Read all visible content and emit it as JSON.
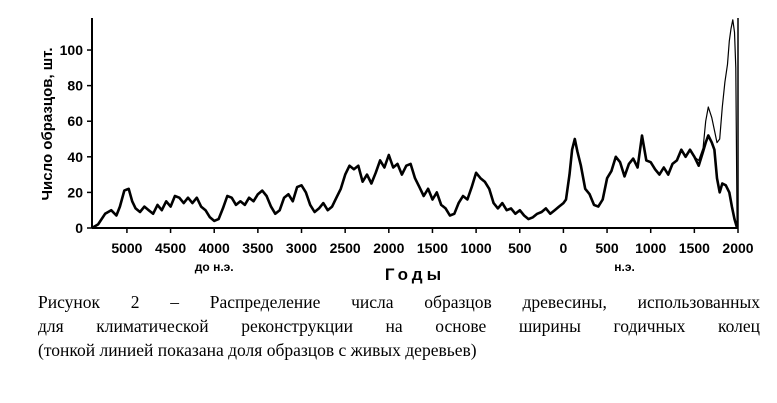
{
  "chart_data": {
    "type": "line",
    "xlabel": "Годы",
    "ylabel": "Число образцов, шт.",
    "x_axis_reversed_before_era": true,
    "x_ticks": [
      {
        "label": "5000",
        "year": -5000
      },
      {
        "label": "4500",
        "year": -4500
      },
      {
        "label": "4000",
        "year": -4000
      },
      {
        "label": "3500",
        "year": -3500
      },
      {
        "label": "3000",
        "year": -3000
      },
      {
        "label": "2500",
        "year": -2500
      },
      {
        "label": "2000",
        "year": -2000
      },
      {
        "label": "1500",
        "year": -1500
      },
      {
        "label": "1000",
        "year": -1000
      },
      {
        "label": "500",
        "year": -500
      },
      {
        "label": "0",
        "year": 0
      },
      {
        "label": "500",
        "year": 500
      },
      {
        "label": "1000",
        "year": 1000
      },
      {
        "label": "1500",
        "year": 1500
      },
      {
        "label": "2000",
        "year": 2000
      }
    ],
    "era_labels": [
      {
        "text": "до н.э.",
        "year": -4000
      },
      {
        "text": "н.э.",
        "year": 700
      }
    ],
    "y_ticks": [
      0,
      20,
      40,
      60,
      80,
      100
    ],
    "xlim": [
      -5400,
      2000
    ],
    "ylim": [
      0,
      118
    ],
    "grid": false,
    "series": [
      {
        "style": "thick",
        "points": [
          [
            -5400,
            0
          ],
          [
            -5330,
            2
          ],
          [
            -5250,
            8
          ],
          [
            -5180,
            10
          ],
          [
            -5120,
            7
          ],
          [
            -5080,
            12
          ],
          [
            -5030,
            21
          ],
          [
            -4980,
            22
          ],
          [
            -4940,
            15
          ],
          [
            -4900,
            11
          ],
          [
            -4850,
            9
          ],
          [
            -4800,
            12
          ],
          [
            -4750,
            10
          ],
          [
            -4700,
            8
          ],
          [
            -4650,
            13
          ],
          [
            -4600,
            10
          ],
          [
            -4550,
            15
          ],
          [
            -4500,
            12
          ],
          [
            -4450,
            18
          ],
          [
            -4400,
            17
          ],
          [
            -4350,
            14
          ],
          [
            -4300,
            17
          ],
          [
            -4250,
            14
          ],
          [
            -4200,
            17
          ],
          [
            -4150,
            12
          ],
          [
            -4100,
            10
          ],
          [
            -4050,
            6
          ],
          [
            -4000,
            4
          ],
          [
            -3950,
            5
          ],
          [
            -3900,
            11
          ],
          [
            -3850,
            18
          ],
          [
            -3800,
            17
          ],
          [
            -3750,
            13
          ],
          [
            -3700,
            15
          ],
          [
            -3650,
            13
          ],
          [
            -3600,
            17
          ],
          [
            -3550,
            15
          ],
          [
            -3500,
            19
          ],
          [
            -3450,
            21
          ],
          [
            -3400,
            18
          ],
          [
            -3350,
            12
          ],
          [
            -3300,
            8
          ],
          [
            -3250,
            10
          ],
          [
            -3200,
            17
          ],
          [
            -3150,
            19
          ],
          [
            -3100,
            15
          ],
          [
            -3050,
            23
          ],
          [
            -3000,
            24
          ],
          [
            -2950,
            20
          ],
          [
            -2900,
            13
          ],
          [
            -2850,
            9
          ],
          [
            -2800,
            11
          ],
          [
            -2750,
            14
          ],
          [
            -2700,
            10
          ],
          [
            -2650,
            12
          ],
          [
            -2600,
            17
          ],
          [
            -2550,
            22
          ],
          [
            -2500,
            30
          ],
          [
            -2450,
            35
          ],
          [
            -2400,
            33
          ],
          [
            -2350,
            35
          ],
          [
            -2300,
            26
          ],
          [
            -2250,
            30
          ],
          [
            -2200,
            25
          ],
          [
            -2150,
            31
          ],
          [
            -2100,
            38
          ],
          [
            -2050,
            34
          ],
          [
            -2000,
            41
          ],
          [
            -1950,
            34
          ],
          [
            -1900,
            36
          ],
          [
            -1850,
            30
          ],
          [
            -1800,
            35
          ],
          [
            -1750,
            36
          ],
          [
            -1700,
            28
          ],
          [
            -1650,
            23
          ],
          [
            -1600,
            18
          ],
          [
            -1550,
            22
          ],
          [
            -1500,
            16
          ],
          [
            -1450,
            20
          ],
          [
            -1400,
            13
          ],
          [
            -1350,
            11
          ],
          [
            -1300,
            7
          ],
          [
            -1250,
            8
          ],
          [
            -1200,
            14
          ],
          [
            -1150,
            18
          ],
          [
            -1100,
            16
          ],
          [
            -1050,
            23
          ],
          [
            -1000,
            31
          ],
          [
            -950,
            28
          ],
          [
            -900,
            26
          ],
          [
            -850,
            22
          ],
          [
            -800,
            14
          ],
          [
            -750,
            11
          ],
          [
            -700,
            14
          ],
          [
            -650,
            10
          ],
          [
            -600,
            11
          ],
          [
            -550,
            8
          ],
          [
            -500,
            10
          ],
          [
            -450,
            7
          ],
          [
            -400,
            5
          ],
          [
            -350,
            6
          ],
          [
            -300,
            8
          ],
          [
            -250,
            9
          ],
          [
            -200,
            11
          ],
          [
            -150,
            8
          ],
          [
            -100,
            10
          ],
          [
            -50,
            12
          ],
          [
            0,
            14
          ],
          [
            30,
            16
          ],
          [
            70,
            30
          ],
          [
            100,
            44
          ],
          [
            130,
            50
          ],
          [
            160,
            43
          ],
          [
            200,
            35
          ],
          [
            250,
            22
          ],
          [
            300,
            19
          ],
          [
            350,
            13
          ],
          [
            400,
            12
          ],
          [
            450,
            16
          ],
          [
            500,
            28
          ],
          [
            550,
            32
          ],
          [
            600,
            40
          ],
          [
            650,
            37
          ],
          [
            700,
            29
          ],
          [
            750,
            36
          ],
          [
            800,
            39
          ],
          [
            850,
            34
          ],
          [
            900,
            52
          ],
          [
            950,
            38
          ],
          [
            1000,
            37
          ],
          [
            1050,
            33
          ],
          [
            1100,
            30
          ],
          [
            1150,
            34
          ],
          [
            1200,
            30
          ],
          [
            1250,
            36
          ],
          [
            1300,
            38
          ],
          [
            1350,
            44
          ],
          [
            1400,
            40
          ],
          [
            1450,
            44
          ],
          [
            1500,
            40
          ],
          [
            1550,
            35
          ],
          [
            1600,
            43
          ],
          [
            1630,
            48
          ],
          [
            1660,
            52
          ],
          [
            1700,
            48
          ],
          [
            1730,
            44
          ],
          [
            1760,
            28
          ],
          [
            1790,
            20
          ],
          [
            1820,
            25
          ],
          [
            1860,
            24
          ],
          [
            1900,
            20
          ],
          [
            1930,
            12
          ],
          [
            1960,
            5
          ],
          [
            1990,
            0
          ]
        ]
      },
      {
        "style": "thin",
        "points": [
          [
            1500,
            40
          ],
          [
            1550,
            38
          ],
          [
            1600,
            45
          ],
          [
            1630,
            60
          ],
          [
            1660,
            68
          ],
          [
            1700,
            62
          ],
          [
            1730,
            55
          ],
          [
            1760,
            48
          ],
          [
            1790,
            50
          ],
          [
            1820,
            68
          ],
          [
            1850,
            82
          ],
          [
            1880,
            92
          ],
          [
            1900,
            105
          ],
          [
            1920,
            112
          ],
          [
            1940,
            117
          ],
          [
            1960,
            110
          ],
          [
            1975,
            90
          ],
          [
            1990,
            0
          ]
        ]
      }
    ]
  },
  "caption": {
    "line1": "Рисунок 2 – Распределение числа образцов древесины, использованных",
    "line2": "для климатической реконструкции на основе ширины годичных колец",
    "line3": "(тонкой линией показана доля образцов с живых деревьев)"
  }
}
